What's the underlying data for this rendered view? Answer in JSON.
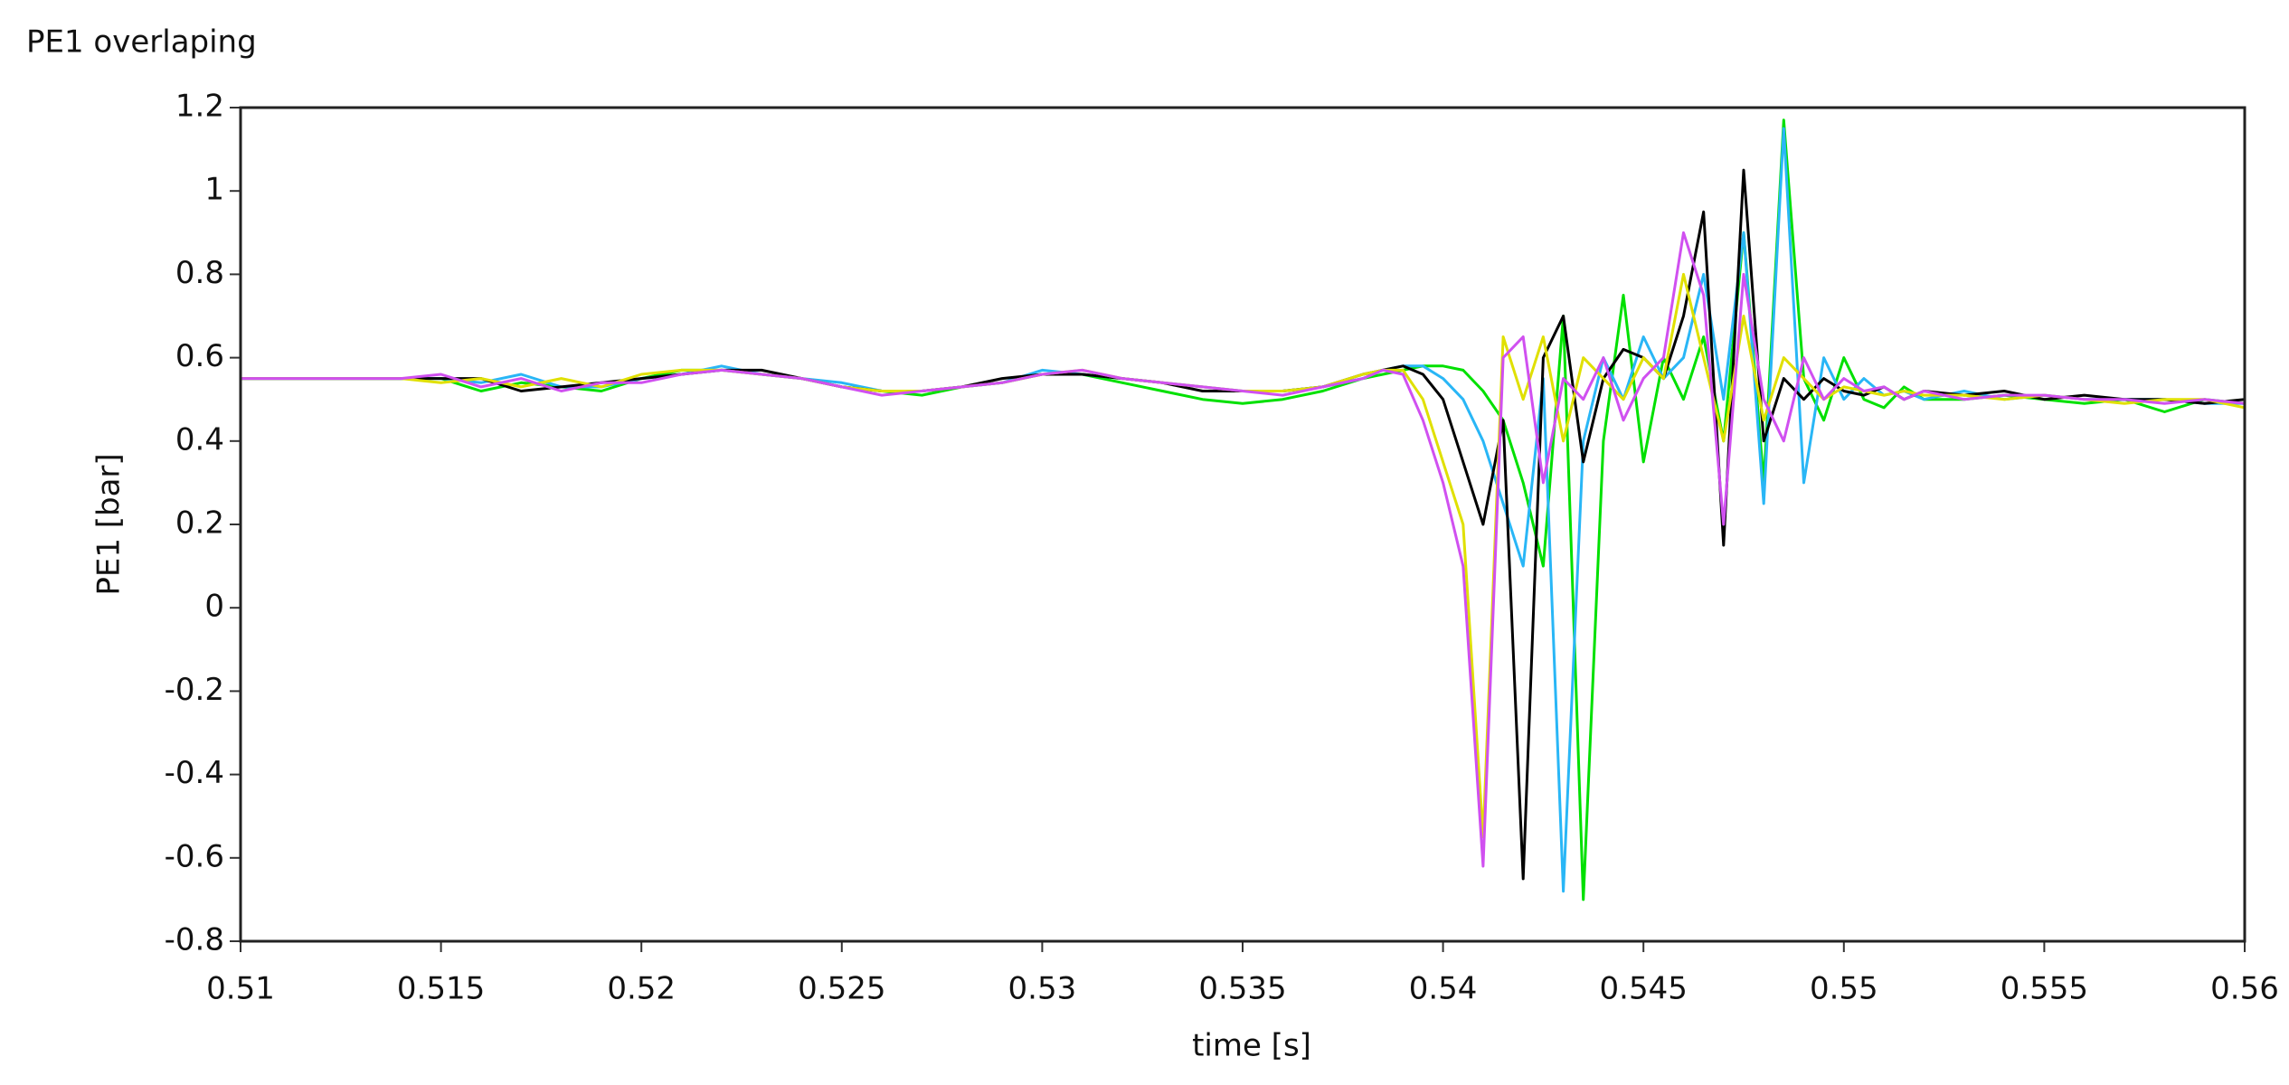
{
  "chart_data": {
    "type": "line",
    "title": "PE1 overlaping",
    "x_label": "time [s]",
    "y_label": "PE1 [bar]",
    "x": [
      0.51,
      0.511,
      0.512,
      0.513,
      0.514,
      0.515,
      0.516,
      0.517,
      0.518,
      0.519,
      0.52,
      0.521,
      0.522,
      0.523,
      0.524,
      0.525,
      0.526,
      0.527,
      0.528,
      0.529,
      0.53,
      0.531,
      0.532,
      0.533,
      0.534,
      0.535,
      0.536,
      0.537,
      0.538,
      0.5385,
      0.539,
      0.5395,
      0.54,
      0.5405,
      0.541,
      0.5415,
      0.542,
      0.5425,
      0.543,
      0.5435,
      0.544,
      0.5445,
      0.545,
      0.5455,
      0.546,
      0.5465,
      0.547,
      0.5475,
      0.548,
      0.5485,
      0.549,
      0.5495,
      0.55,
      0.5505,
      0.551,
      0.5515,
      0.552,
      0.553,
      0.554,
      0.555,
      0.556,
      0.557,
      0.558,
      0.559,
      0.56
    ],
    "series": [
      {
        "color": "#00e000",
        "values": [
          0.55,
          0.55,
          0.55,
          0.55,
          0.55,
          0.55,
          0.52,
          0.54,
          0.53,
          0.52,
          0.55,
          0.57,
          0.57,
          0.56,
          0.55,
          0.53,
          0.52,
          0.51,
          0.53,
          0.54,
          0.56,
          0.56,
          0.54,
          0.52,
          0.5,
          0.49,
          0.5,
          0.52,
          0.55,
          0.56,
          0.57,
          0.58,
          0.58,
          0.57,
          0.52,
          0.45,
          0.3,
          0.1,
          0.7,
          -0.7,
          0.4,
          0.75,
          0.35,
          0.6,
          0.5,
          0.65,
          0.4,
          0.9,
          0.3,
          1.17,
          0.55,
          0.45,
          0.6,
          0.5,
          0.48,
          0.53,
          0.5,
          0.5,
          0.51,
          0.5,
          0.49,
          0.5,
          0.47,
          0.5,
          0.49
        ]
      },
      {
        "color": "#29b6f6",
        "values": [
          0.55,
          0.55,
          0.55,
          0.55,
          0.55,
          0.55,
          0.54,
          0.56,
          0.53,
          0.53,
          0.55,
          0.56,
          0.58,
          0.56,
          0.55,
          0.54,
          0.52,
          0.52,
          0.53,
          0.54,
          0.57,
          0.56,
          0.55,
          0.54,
          0.53,
          0.52,
          0.52,
          0.53,
          0.55,
          0.57,
          0.58,
          0.58,
          0.55,
          0.5,
          0.4,
          0.25,
          0.1,
          0.55,
          -0.68,
          0.4,
          0.6,
          0.5,
          0.65,
          0.55,
          0.6,
          0.8,
          0.5,
          0.9,
          0.25,
          1.15,
          0.3,
          0.6,
          0.5,
          0.55,
          0.51,
          0.52,
          0.5,
          0.52,
          0.5,
          0.51,
          0.5,
          0.5,
          0.5,
          0.49,
          0.49
        ]
      },
      {
        "color": "#000000",
        "values": [
          0.55,
          0.55,
          0.55,
          0.55,
          0.55,
          0.55,
          0.55,
          0.52,
          0.53,
          0.54,
          0.55,
          0.56,
          0.57,
          0.57,
          0.55,
          0.53,
          0.52,
          0.52,
          0.53,
          0.55,
          0.56,
          0.56,
          0.55,
          0.54,
          0.52,
          0.52,
          0.52,
          0.53,
          0.56,
          0.57,
          0.58,
          0.56,
          0.5,
          0.35,
          0.2,
          0.45,
          -0.65,
          0.6,
          0.7,
          0.35,
          0.55,
          0.62,
          0.6,
          0.55,
          0.7,
          0.95,
          0.15,
          1.05,
          0.4,
          0.55,
          0.5,
          0.55,
          0.52,
          0.51,
          0.53,
          0.5,
          0.52,
          0.51,
          0.52,
          0.5,
          0.51,
          0.5,
          0.5,
          0.49,
          0.5
        ]
      },
      {
        "color": "#e0e000",
        "values": [
          0.55,
          0.55,
          0.55,
          0.55,
          0.55,
          0.54,
          0.55,
          0.53,
          0.55,
          0.53,
          0.56,
          0.57,
          0.57,
          0.56,
          0.55,
          0.53,
          0.52,
          0.52,
          0.53,
          0.54,
          0.56,
          0.57,
          0.55,
          0.54,
          0.53,
          0.52,
          0.52,
          0.53,
          0.56,
          0.57,
          0.57,
          0.5,
          0.35,
          0.2,
          -0.55,
          0.65,
          0.5,
          0.65,
          0.4,
          0.6,
          0.55,
          0.5,
          0.6,
          0.55,
          0.8,
          0.6,
          0.4,
          0.7,
          0.45,
          0.6,
          0.55,
          0.5,
          0.53,
          0.52,
          0.51,
          0.52,
          0.51,
          0.51,
          0.5,
          0.51,
          0.5,
          0.49,
          0.5,
          0.5,
          0.48
        ]
      },
      {
        "color": "#d050f0",
        "values": [
          0.55,
          0.55,
          0.55,
          0.55,
          0.55,
          0.56,
          0.53,
          0.55,
          0.52,
          0.54,
          0.54,
          0.56,
          0.57,
          0.56,
          0.55,
          0.53,
          0.51,
          0.52,
          0.53,
          0.54,
          0.56,
          0.57,
          0.55,
          0.54,
          0.53,
          0.52,
          0.51,
          0.53,
          0.55,
          0.57,
          0.56,
          0.45,
          0.3,
          0.1,
          -0.62,
          0.6,
          0.65,
          0.3,
          0.55,
          0.5,
          0.6,
          0.45,
          0.55,
          0.6,
          0.9,
          0.75,
          0.2,
          0.8,
          0.5,
          0.4,
          0.6,
          0.5,
          0.55,
          0.52,
          0.53,
          0.5,
          0.52,
          0.5,
          0.51,
          0.51,
          0.5,
          0.5,
          0.49,
          0.5,
          0.49
        ]
      }
    ],
    "xlim": [
      0.51,
      0.56
    ],
    "xticks": [
      0.51,
      0.515,
      0.52,
      0.525,
      0.53,
      0.535,
      0.54,
      0.545,
      0.55,
      0.555,
      0.56
    ],
    "ylim": [
      -0.8,
      1.2
    ],
    "yticks": [
      -0.8,
      -0.6,
      -0.4,
      -0.2,
      0,
      0.2,
      0.4,
      0.6,
      0.8,
      1,
      1.2
    ]
  }
}
